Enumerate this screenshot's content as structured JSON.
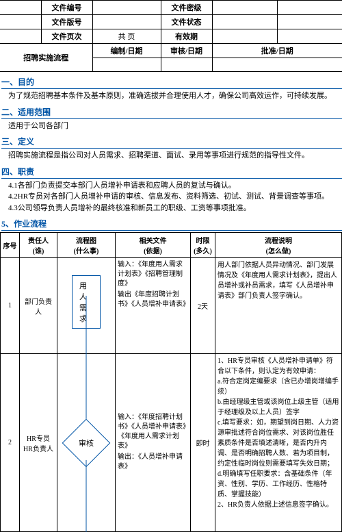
{
  "header": {
    "r1c1": "文件编号",
    "r1c2": "",
    "r1c3": "文件密级",
    "r1c4": "",
    "r2c1": "文件版号",
    "r2c2": "",
    "r2c3": "文件状态",
    "r2c4": "",
    "r3c1": "文件页次",
    "r3c2": "共  页",
    "r3c3": "有效期",
    "r3c4": "",
    "title": "招聘实施流程",
    "r4c1": "编制/日期",
    "r4c2": "审核/日期",
    "r4c3": "批准/日期"
  },
  "s1": {
    "h": "一、目的",
    "b": "为了规范招聘基本条件及基本原则，准确选拔并合理使用人才，确保公司高效运作，可持续发展。"
  },
  "s2": {
    "h": "二、适用范围",
    "b": "适用于公司各部门"
  },
  "s3": {
    "h": "三、定义",
    "b": "招聘实施流程是指公司对人员需求、招聘渠道、面试、录用等事项进行规范的指导性文件。"
  },
  "s4": {
    "h": "四、职责",
    "b1": "4.1各部门负责提交本部门人员增补申请表和应聘人员的复试与确认。",
    "b2": "4.2HR专员对各部门人员增补申请的审核、信息发布、资料筛选、初试、测试、背景调查等事项。",
    "b3": "4.3公司领导负责人员增补的最终核准和新员工的职级、工资等事项批准。"
  },
  "s5": {
    "h": "5、作业流程"
  },
  "wf": {
    "col": {
      "no": "序号",
      "owner": "责任人\n(谁)",
      "flow": "流程图\n(什么事)",
      "doc": "相关文件\n(依据)",
      "time": "时限\n(多久)",
      "expl": "流程说明\n(怎么做)"
    },
    "r1": {
      "no": "1",
      "owner": "部门负责人",
      "flow": "用人需求",
      "doc_in": "输入：《年度用人需求计划表》《招聘管理制度》",
      "doc_out": "输出《年度招聘计划书》《人员增补申请表》",
      "time": "2天",
      "expl": "用人部门依据人员异动情况、部门发展情况及《年度用人需求计划表》，提出人员增补或补员需求，填写《人员增补申请表》部门负责人签字确认。"
    },
    "r2": {
      "no": "2",
      "owner": "HR专员\nHR负责人",
      "flow": "审核",
      "doc_in": "输入：《年度招聘计划书》《人员增补申请表》《年度用人需求计划表》",
      "doc_out": "输出：《人员增补申请表》",
      "time": "即时",
      "expl": "1、HR专员审核《人员增补申请单》符合以下条件，则认定为有效申请：\na.符合定岗定编要求（含已办增岗增编手续）\nb.由经理级主管或该岗位上级主管（适用于经理级及以上人员）签字\nc.填写要求：如，期望到岗日期、人力资源审批述符合岗位需求、对该岗位胜任素质条件是否填述清晰，是否内升内调、是否明确招聘人数、若为项目制，约定性临时岗位则需要填写失效日期；\nd.明确填写任职要求：含基础条件（年资、性别、学历、工作经历、性格特质、掌握技能）\n2、HR负责人依据上述信息签字确认。"
    }
  }
}
